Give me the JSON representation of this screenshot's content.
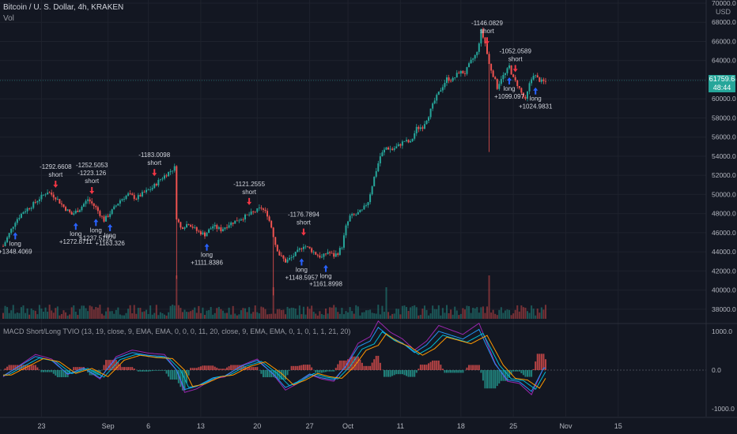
{
  "header": {
    "symbol_line": "Bitcoin / U. S. Dollar, 4h, KRAKEN",
    "vol_label": "Vol",
    "indicator_label": "MACD Short/Long TVIO (13, 19, close, 9, EMA, EMA, 0, 0, 0, 11, 20, close, 9, EMA, EMA, 0, 1, 0, 1, 1, 21, 20)",
    "currency": "USD"
  },
  "price_label": {
    "value": "61759.6",
    "countdown": "48:44"
  },
  "colors": {
    "background": "#131722",
    "up": "#26a69a",
    "down": "#ef5350",
    "grid": "#1e222d",
    "text": "#b2b5be",
    "arrow_up": "#2962ff",
    "arrow_down": "#f23645",
    "macd_blue": "#2196f3",
    "macd_orange": "#ff9800",
    "macd_purple": "#9c27b0",
    "macd_cyan": "#00bcd4"
  },
  "chart_data": {
    "type": "candlestick",
    "price_axis_ticks": [
      "70000.0",
      "68000.0",
      "66000.0",
      "64000.0",
      "62000.0",
      "60000.0",
      "58000.0",
      "56000.0",
      "54000.0",
      "52000.0",
      "50000.0",
      "48000.0",
      "46000.0",
      "44000.0",
      "42000.0",
      "40000.0",
      "38000.0"
    ],
    "macd_axis_ticks": [
      "1000.0",
      "0.0",
      "-1000.0"
    ],
    "x_axis_ticks": [
      "23",
      "Sep",
      "6",
      "13",
      "20",
      "27",
      "Oct",
      "11",
      "18",
      "25",
      "Nov",
      "15"
    ],
    "price_range": [
      37000,
      70000
    ],
    "macd_range": [
      -1200,
      1200
    ],
    "close_path": [
      [
        0,
        44600
      ],
      [
        3,
        45900
      ],
      [
        6,
        47200
      ],
      [
        10,
        48200
      ],
      [
        14,
        48800
      ],
      [
        18,
        49600
      ],
      [
        22,
        50300
      ],
      [
        26,
        49700
      ],
      [
        30,
        48700
      ],
      [
        34,
        47900
      ],
      [
        38,
        48500
      ],
      [
        42,
        49500
      ],
      [
        46,
        48600
      ],
      [
        50,
        47300
      ],
      [
        54,
        48300
      ],
      [
        58,
        49400
      ],
      [
        62,
        50000
      ],
      [
        66,
        49600
      ],
      [
        70,
        50200
      ],
      [
        74,
        50700
      ],
      [
        78,
        51600
      ],
      [
        82,
        52300
      ],
      [
        85,
        52800
      ],
      [
        86,
        47600
      ],
      [
        88,
        46500
      ],
      [
        92,
        47000
      ],
      [
        96,
        46200
      ],
      [
        100,
        45800
      ],
      [
        104,
        46700
      ],
      [
        108,
        46300
      ],
      [
        112,
        46900
      ],
      [
        116,
        47300
      ],
      [
        120,
        47700
      ],
      [
        124,
        48100
      ],
      [
        128,
        48600
      ],
      [
        131,
        47900
      ],
      [
        133,
        46600
      ],
      [
        135,
        44800
      ],
      [
        137,
        43700
      ],
      [
        140,
        43000
      ],
      [
        143,
        43400
      ],
      [
        146,
        44000
      ],
      [
        149,
        44700
      ],
      [
        152,
        44300
      ],
      [
        155,
        43800
      ],
      [
        158,
        43400
      ],
      [
        161,
        44000
      ],
      [
        164,
        43600
      ],
      [
        166,
        43900
      ],
      [
        168,
        44600
      ],
      [
        170,
        46600
      ],
      [
        172,
        47700
      ],
      [
        175,
        47900
      ],
      [
        178,
        48300
      ],
      [
        181,
        49300
      ],
      [
        184,
        51800
      ],
      [
        187,
        54000
      ],
      [
        190,
        54900
      ],
      [
        193,
        54700
      ],
      [
        196,
        55100
      ],
      [
        199,
        55600
      ],
      [
        202,
        55400
      ],
      [
        205,
        56900
      ],
      [
        208,
        57100
      ],
      [
        211,
        58300
      ],
      [
        214,
        59800
      ],
      [
        217,
        61000
      ],
      [
        220,
        62100
      ],
      [
        223,
        62000
      ],
      [
        226,
        62800
      ],
      [
        229,
        62700
      ],
      [
        232,
        63900
      ],
      [
        235,
        64800
      ],
      [
        237,
        67100
      ],
      [
        239,
        65800
      ],
      [
        241,
        63600
      ],
      [
        243,
        62500
      ],
      [
        245,
        61200
      ],
      [
        247,
        62200
      ],
      [
        249,
        62600
      ],
      [
        251,
        63400
      ],
      [
        253,
        62100
      ],
      [
        255,
        61500
      ],
      [
        257,
        60600
      ],
      [
        259,
        59800
      ],
      [
        261,
        61500
      ],
      [
        263,
        62600
      ],
      [
        265,
        62100
      ],
      [
        267,
        61800
      ],
      [
        269,
        61760
      ]
    ],
    "macd_path": [
      [
        0,
        -150
      ],
      [
        8,
        100
      ],
      [
        16,
        350
      ],
      [
        24,
        250
      ],
      [
        32,
        -100
      ],
      [
        40,
        50
      ],
      [
        48,
        -200
      ],
      [
        56,
        300
      ],
      [
        64,
        450
      ],
      [
        72,
        380
      ],
      [
        80,
        350
      ],
      [
        86,
        0
      ],
      [
        90,
        -500
      ],
      [
        96,
        -420
      ],
      [
        104,
        -200
      ],
      [
        110,
        -150
      ],
      [
        118,
        100
      ],
      [
        126,
        250
      ],
      [
        134,
        -100
      ],
      [
        140,
        -450
      ],
      [
        146,
        -300
      ],
      [
        152,
        -100
      ],
      [
        158,
        -200
      ],
      [
        164,
        -250
      ],
      [
        170,
        100
      ],
      [
        176,
        600
      ],
      [
        182,
        750
      ],
      [
        186,
        1100
      ],
      [
        192,
        850
      ],
      [
        198,
        700
      ],
      [
        204,
        450
      ],
      [
        210,
        650
      ],
      [
        216,
        1000
      ],
      [
        222,
        900
      ],
      [
        228,
        800
      ],
      [
        236,
        1050
      ],
      [
        240,
        600
      ],
      [
        244,
        150
      ],
      [
        250,
        -250
      ],
      [
        256,
        -300
      ],
      [
        262,
        -550
      ],
      [
        268,
        50
      ],
      [
        270,
        50
      ]
    ],
    "trade_signals": [
      {
        "bar": 6,
        "dir": "long",
        "lines": [
          "long",
          "+1348.4069"
        ]
      },
      {
        "bar": 26,
        "dir": "short",
        "lines": [
          "-1292.6608",
          "short"
        ]
      },
      {
        "bar": 36,
        "dir": "long",
        "lines": [
          "long",
          "+1272.8711"
        ]
      },
      {
        "bar": 44,
        "dir": "short",
        "lines": [
          "-1252.5053",
          "-1223.126",
          "short"
        ]
      },
      {
        "bar": 46,
        "dir": "long",
        "lines": [
          "long",
          "+1237.5192"
        ]
      },
      {
        "bar": 53,
        "dir": "long",
        "lines": [
          "long",
          "+1163.326"
        ]
      },
      {
        "bar": 75,
        "dir": "short",
        "lines": [
          "-1183.0098",
          "short"
        ]
      },
      {
        "bar": 101,
        "dir": "long",
        "lines": [
          "long",
          "+1111.8386"
        ]
      },
      {
        "bar": 122,
        "dir": "short",
        "lines": [
          "-1121.2555",
          "short"
        ]
      },
      {
        "bar": 148,
        "dir": "long",
        "lines": [
          "long",
          "+1148.5957"
        ]
      },
      {
        "bar": 149,
        "dir": "short",
        "lines": [
          "-1176.7894",
          "short"
        ]
      },
      {
        "bar": 160,
        "dir": "long",
        "lines": [
          "long",
          "+1161.8998"
        ]
      },
      {
        "bar": 240,
        "dir": "short",
        "lines": [
          "-1146.0829",
          "short"
        ]
      },
      {
        "bar": 251,
        "dir": "long",
        "lines": [
          "long",
          "+1099.097"
        ]
      },
      {
        "bar": 254,
        "dir": "short",
        "lines": [
          "-1052.0589",
          "short"
        ]
      },
      {
        "bar": 264,
        "dir": "long",
        "lines": [
          "long",
          "+1024.9831"
        ]
      }
    ]
  }
}
